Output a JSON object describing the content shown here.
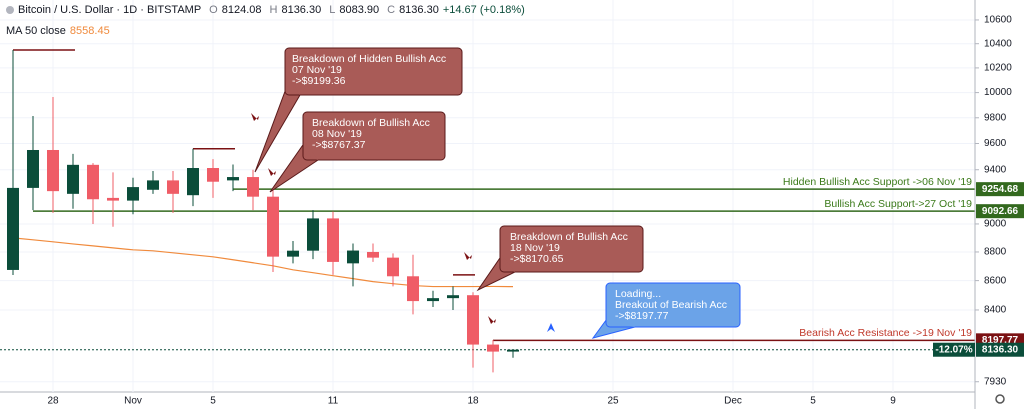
{
  "header": {
    "symbol": "Bitcoin / U.S. Dollar · 1D · BITSTAMP",
    "ohlc": [
      [
        "O",
        "8124.08"
      ],
      [
        "H",
        "8136.30"
      ],
      [
        "L",
        "8083.90"
      ],
      [
        "C",
        "8136.30"
      ]
    ],
    "change": "+14.67 (+0.18%)"
  },
  "chart_data": {
    "type": "candlestick",
    "categories": [
      null,
      null,
      "28",
      null,
      null,
      null,
      "Nov",
      null,
      null,
      null,
      "5",
      null,
      null,
      null,
      null,
      null,
      "11",
      null,
      null,
      null,
      null,
      null,
      null,
      "18",
      null,
      null,
      null,
      null,
      null,
      null,
      "25",
      null,
      null,
      null,
      null,
      null,
      "Dec",
      null,
      null,
      null,
      "5",
      null,
      null,
      null,
      "9",
      null,
      null,
      null
    ],
    "open": [
      8674,
      9264,
      9550,
      9220,
      9437,
      9190,
      9170,
      9250,
      9320,
      9210,
      9413,
      9320,
      9345,
      9199,
      8767,
      8809,
      9040,
      8720,
      8800,
      8760,
      8630,
      8460,
      8480,
      8500,
      8170,
      8124.08,
      null,
      null,
      null,
      null,
      null,
      null,
      null,
      null,
      null,
      null,
      null,
      null,
      null,
      null,
      null,
      null,
      null,
      null,
      null,
      null,
      null,
      null
    ],
    "high": [
      10348,
      9814,
      9965,
      9520,
      9450,
      9380,
      9340,
      9390,
      9390,
      9560,
      9480,
      9440,
      9400,
      9260,
      8878,
      9100,
      9090,
      8860,
      8860,
      8790,
      8780,
      8530,
      8560,
      8520,
      8200,
      8136.3,
      null,
      null,
      null,
      null,
      null,
      null,
      null,
      null,
      null,
      null,
      null,
      null,
      null,
      null,
      null,
      null,
      null,
      null,
      null,
      null,
      null,
      null
    ],
    "low": [
      8639,
      9100,
      9080,
      9110,
      9000,
      8980,
      9070,
      9220,
      9080,
      9130,
      9190,
      9240,
      9100,
      8660,
      8720,
      8750,
      8640,
      8560,
      8730,
      8560,
      8370,
      8420,
      8400,
      8020,
      7990,
      8083.9,
      null,
      null,
      null,
      null,
      null,
      null,
      null,
      null,
      null,
      null,
      null,
      null,
      null,
      null,
      null,
      null,
      null,
      null,
      null,
      null,
      null,
      null
    ],
    "close": [
      9264,
      9550,
      9240,
      9437,
      9180,
      9170,
      9270,
      9320,
      9220,
      9413,
      9310,
      9345,
      9199,
      8767,
      8809,
      9040,
      8730,
      8810,
      8760,
      8630,
      8460,
      8480,
      8500,
      8170,
      8124,
      8136.3,
      null,
      null,
      null,
      null,
      null,
      null,
      null,
      null,
      null,
      null,
      null,
      null,
      null,
      null,
      null,
      null,
      null,
      null,
      null,
      null,
      null,
      null
    ],
    "up_color": "#0b4d3a",
    "down_color": "#ef5c66",
    "ma": {
      "name": "MA 50 close",
      "color": "#f08a3c",
      "values": [
        8900,
        8886,
        8872,
        8857,
        8843,
        8829,
        8815,
        8808,
        8794,
        8780,
        8766,
        8745,
        8724,
        8703,
        8675,
        8655,
        8634,
        8614,
        8593,
        8579,
        8566,
        8559,
        8559,
        8559,
        8560,
        8558.45,
        null,
        null,
        null,
        null,
        null,
        null,
        null,
        null,
        null,
        null,
        null,
        null,
        null,
        null,
        null,
        null,
        null,
        null,
        null,
        null,
        null,
        null
      ]
    },
    "ylim": [
      7865,
      10771
    ],
    "log_scale": true,
    "yticks": [
      10600,
      10400,
      10200,
      10000,
      9800,
      9600,
      9400,
      9000,
      8800,
      8600,
      8400,
      7930
    ],
    "grid": true,
    "levels": [
      {
        "name": "Hidden Bullish Acc Support ->06 Nov '19",
        "value": 9254.68,
        "color": "#33691e"
      },
      {
        "name": "Bullish Acc Support->27 Oct '19",
        "value": 9092.66,
        "color": "#33691e"
      },
      {
        "name": "Bearish Acc Resistance ->19 Nov '19",
        "value": 8197.77,
        "color": "#7b1113"
      }
    ],
    "short_levels": {
      "values": [
        10348,
        9560,
        8640
      ],
      "color": "#7b1113"
    },
    "current_price": {
      "value": 8136.3,
      "label": "8136.30",
      "change": "-12.07%",
      "color": "#0b4d3a"
    },
    "annotations": [
      {
        "lines": [
          "Breakdown of Hidden Bullish Acc",
          "07 Nov '19",
          "->$9199.36"
        ],
        "color": "#a95b57"
      },
      {
        "lines": [
          "Breakdown of Bullish Acc",
          "08 Nov '19",
          "->$8767.37"
        ],
        "color": "#a95b57"
      },
      {
        "lines": [
          "Breakdown of Bullish Acc",
          "18 Nov '19",
          "->$8170.65"
        ],
        "color": "#a95b57"
      },
      {
        "lines": [
          "Loading...",
          "Breakout of Bearish Acc",
          "->$8197.77"
        ],
        "color": "#6ba3e8"
      }
    ]
  }
}
